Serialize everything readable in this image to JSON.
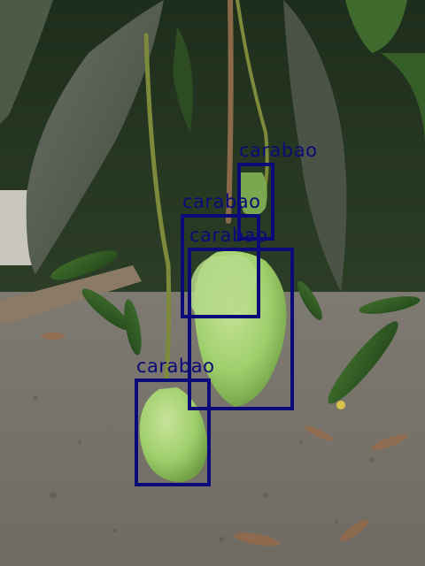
{
  "image": {
    "description_tag": "mango-tree-photo",
    "annotation_color": "#0a0a78"
  },
  "detections": [
    {
      "label": "carabao"
    },
    {
      "label": "carabao"
    },
    {
      "label": "carabao"
    },
    {
      "label": "carabao"
    }
  ]
}
